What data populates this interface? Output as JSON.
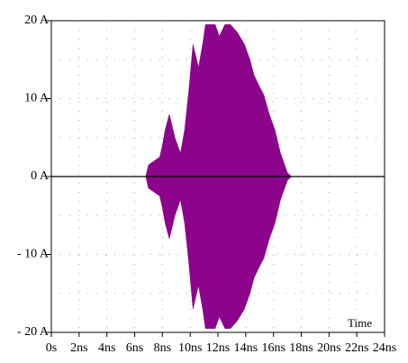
{
  "chart_data": {
    "type": "area",
    "title": "",
    "xlabel": "Time",
    "ylabel": "",
    "xlim": [
      0,
      24
    ],
    "ylim": [
      -20,
      20
    ],
    "grid": true,
    "x_ticks": [
      0,
      2,
      4,
      6,
      8,
      10,
      12,
      14,
      16,
      18,
      20,
      22,
      24
    ],
    "x_tick_labels": [
      "0s",
      "2ns",
      "4ns",
      "6ns",
      "8ns",
      "10ns",
      "12ns",
      "14ns",
      "16ns",
      "18ns",
      "20ns",
      "22ns",
      "24ns"
    ],
    "y_ticks": [
      20,
      10,
      0,
      -10,
      -20
    ],
    "y_tick_labels": [
      "20 A",
      "10 A",
      "0 A",
      "- 10 A",
      "- 20 A"
    ],
    "colors": {
      "fill": "#8b048b",
      "zero_line": "#000000",
      "grid": "#aaaaaa"
    },
    "series": [
      {
        "x": [
          0,
          6.8,
          7.0,
          7.4,
          7.8,
          8.0,
          8.2,
          8.5,
          8.9,
          9.3,
          9.6,
          9.9,
          10.2,
          10.6,
          10.9,
          11.1,
          11.4,
          11.8,
          12.1,
          12.5,
          12.9,
          13.4,
          13.9,
          14.3,
          14.6,
          15.0,
          15.3,
          15.7,
          16.1,
          16.5,
          16.8,
          17.0,
          17.3,
          24
        ],
        "upper": [
          0,
          0,
          1.5,
          2.0,
          2.5,
          4.0,
          6.0,
          8.0,
          5.0,
          3.0,
          6.0,
          11.0,
          17.0,
          14.0,
          17.0,
          19.5,
          19.5,
          19.5,
          18.0,
          19.5,
          19.5,
          18.5,
          17.0,
          15.0,
          13.0,
          11.5,
          10.5,
          8.0,
          6.0,
          3.0,
          1.5,
          0.5,
          0,
          0
        ],
        "lower": [
          0,
          0,
          -1.5,
          -2.0,
          -2.5,
          -4.0,
          -6.0,
          -8.0,
          -5.0,
          -3.0,
          -6.0,
          -11.0,
          -17.0,
          -14.0,
          -17.0,
          -19.5,
          -19.5,
          -19.5,
          -18.0,
          -19.5,
          -19.5,
          -18.5,
          -17.0,
          -15.0,
          -13.0,
          -11.5,
          -10.5,
          -8.0,
          -6.0,
          -3.0,
          -1.5,
          -0.5,
          0,
          0
        ]
      }
    ]
  }
}
